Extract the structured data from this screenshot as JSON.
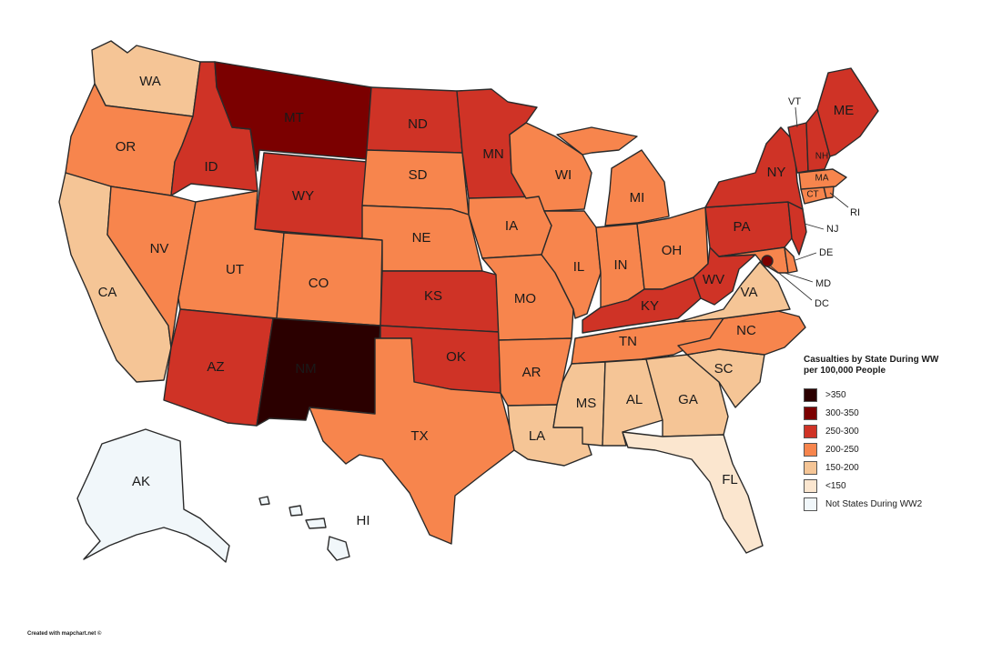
{
  "legend": {
    "title_line1": "Casualties by State During WW",
    "title_line2": "per 100,000 People",
    "items": [
      {
        "label": ">350",
        "color": "#2b0000"
      },
      {
        "label": "300-350",
        "color": "#7b0000"
      },
      {
        "label": "250-300",
        "color": "#cf3326"
      },
      {
        "label": "200-250",
        "color": "#f7854d"
      },
      {
        "label": "150-200",
        "color": "#f5c596"
      },
      {
        "label": "<150",
        "color": "#fbe6cf"
      },
      {
        "label": "Not States During WW2",
        "color": "#f1f7fa"
      }
    ]
  },
  "credit": "Created with mapchart.net ©",
  "states": {
    "WA": {
      "label": "WA",
      "category": "150-200"
    },
    "OR": {
      "label": "OR",
      "category": "200-250"
    },
    "CA": {
      "label": "CA",
      "category": "150-200"
    },
    "ID": {
      "label": "ID",
      "category": "250-300"
    },
    "NV": {
      "label": "NV",
      "category": "200-250"
    },
    "MT": {
      "label": "MT",
      "category": "300-350"
    },
    "WY": {
      "label": "WY",
      "category": "250-300"
    },
    "UT": {
      "label": "UT",
      "category": "200-250"
    },
    "CO": {
      "label": "CO",
      "category": "200-250"
    },
    "AZ": {
      "label": "AZ",
      "category": "250-300"
    },
    "NM": {
      "label": "NM",
      "category": ">350"
    },
    "ND": {
      "label": "ND",
      "category": "250-300"
    },
    "SD": {
      "label": "SD",
      "category": "200-250"
    },
    "NE": {
      "label": "NE",
      "category": "200-250"
    },
    "KS": {
      "label": "KS",
      "category": "250-300"
    },
    "OK": {
      "label": "OK",
      "category": "250-300"
    },
    "TX": {
      "label": "TX",
      "category": "200-250"
    },
    "MN": {
      "label": "MN",
      "category": "250-300"
    },
    "IA": {
      "label": "IA",
      "category": "200-250"
    },
    "MO": {
      "label": "MO",
      "category": "200-250"
    },
    "AR": {
      "label": "AR",
      "category": "200-250"
    },
    "LA": {
      "label": "LA",
      "category": "150-200"
    },
    "WI": {
      "label": "WI",
      "category": "200-250"
    },
    "IL": {
      "label": "IL",
      "category": "200-250"
    },
    "MI": {
      "label": "MI",
      "category": "200-250"
    },
    "IN": {
      "label": "IN",
      "category": "200-250"
    },
    "OH": {
      "label": "OH",
      "category": "200-250"
    },
    "KY": {
      "label": "KY",
      "category": "250-300"
    },
    "TN": {
      "label": "TN",
      "category": "200-250"
    },
    "MS": {
      "label": "MS",
      "category": "150-200"
    },
    "AL": {
      "label": "AL",
      "category": "150-200"
    },
    "GA": {
      "label": "GA",
      "category": "150-200"
    },
    "FL": {
      "label": "FL",
      "category": "<150"
    },
    "SC": {
      "label": "SC",
      "category": "150-200"
    },
    "NC": {
      "label": "NC",
      "category": "200-250"
    },
    "VA": {
      "label": "VA",
      "category": "150-200"
    },
    "WV": {
      "label": "WV",
      "category": "250-300"
    },
    "PA": {
      "label": "PA",
      "category": "250-300"
    },
    "NY": {
      "label": "NY",
      "category": "250-300"
    },
    "NJ": {
      "label": "NJ",
      "category": "250-300"
    },
    "DE": {
      "label": "DE",
      "category": "200-250"
    },
    "MD": {
      "label": "MD",
      "category": "200-250"
    },
    "DC": {
      "label": "DC",
      "category": "300-350"
    },
    "VT": {
      "label": "VT",
      "category": "250-300"
    },
    "NH": {
      "label": "NH",
      "category": "250-300"
    },
    "ME": {
      "label": "ME",
      "category": "250-300"
    },
    "MA": {
      "label": "MA",
      "category": "200-250"
    },
    "CT": {
      "label": "CT",
      "category": "200-250"
    },
    "RI": {
      "label": "RI",
      "category": "200-250"
    },
    "AK": {
      "label": "AK",
      "category": "Not States During WW2"
    },
    "HI": {
      "label": "HI",
      "category": "Not States During WW2"
    }
  }
}
